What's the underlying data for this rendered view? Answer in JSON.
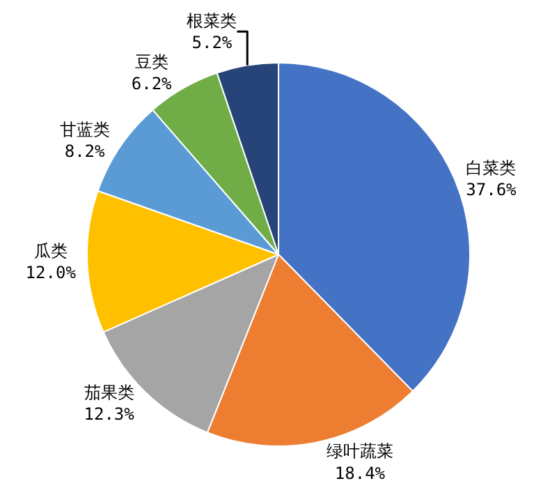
{
  "chart_data": {
    "type": "pie",
    "categories": [
      "白菜类",
      "绿叶蔬菜",
      "茄果类",
      "瓜类",
      "甘蓝类",
      "豆类",
      "根菜类"
    ],
    "values": [
      37.6,
      18.4,
      12.3,
      12.0,
      8.2,
      6.2,
      5.2
    ],
    "value_labels": [
      "37.6%",
      "18.4%",
      "12.3%",
      "12.0%",
      "8.2%",
      "6.2%",
      "5.2%"
    ],
    "colors": [
      "#4472c4",
      "#ed7d31",
      "#a5a5a5",
      "#ffc000",
      "#5b9bd5",
      "#70ad47",
      "#264478"
    ],
    "legend": false
  }
}
